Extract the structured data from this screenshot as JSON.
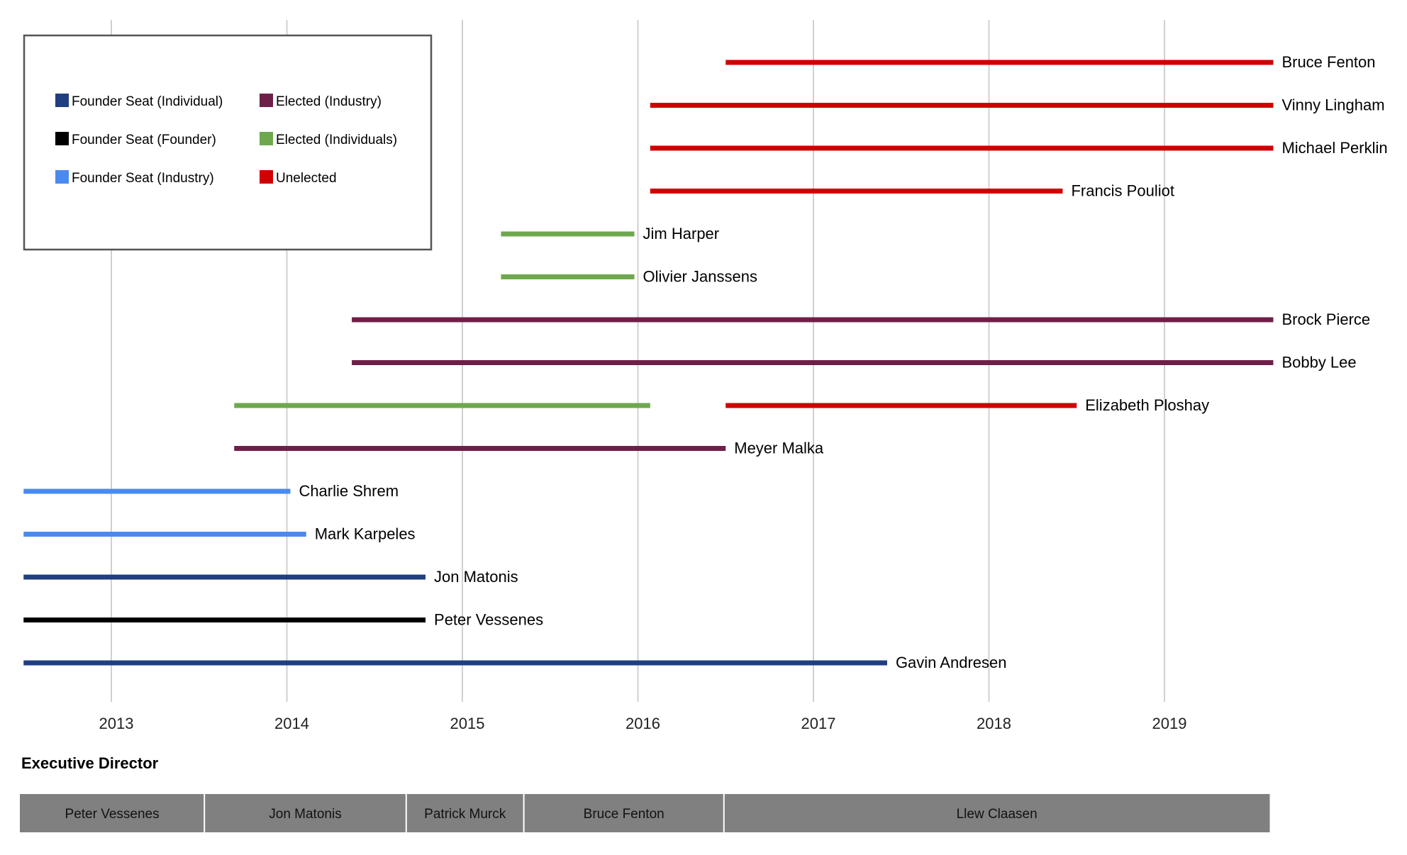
{
  "chart_data": {
    "type": "timeline",
    "title": "",
    "xlabel": "",
    "ylabel": "",
    "xlim": [
      2012.5,
      2019.75
    ],
    "grid": true,
    "x_ticks": [
      2013,
      2014,
      2015,
      2016,
      2017,
      2018,
      2019
    ],
    "categories_colors": {
      "Founder Seat (Individual)": "#1f3f7f",
      "Founder Seat (Founder)": "#000000",
      "Founder Seat (Industry)": "#4a8af0",
      "Elected (Industry)": "#6e1f48",
      "Elected (Individuals)": "#6ea84e",
      "Unelected": "#d00000"
    },
    "legend": [
      {
        "label": "Founder Seat (Individual)",
        "category": "Founder Seat (Individual)"
      },
      {
        "label": "Elected (Industry)",
        "category": "Elected (Industry)"
      },
      {
        "label": "Founder Seat (Founder)",
        "category": "Founder Seat (Founder)"
      },
      {
        "label": "Elected (Individuals)",
        "category": "Elected (Individuals)"
      },
      {
        "label": "Founder Seat (Industry)",
        "category": "Founder Seat (Industry)"
      },
      {
        "label": "Unelected",
        "category": "Unelected"
      }
    ],
    "rows": [
      {
        "name": "Bruce Fenton",
        "segments": [
          {
            "start": 2016.5,
            "end": 2019.62,
            "category": "Unelected"
          }
        ]
      },
      {
        "name": "Vinny Lingham",
        "segments": [
          {
            "start": 2016.07,
            "end": 2019.62,
            "category": "Unelected"
          }
        ]
      },
      {
        "name": "Michael Perklin",
        "segments": [
          {
            "start": 2016.07,
            "end": 2019.62,
            "category": "Unelected"
          }
        ]
      },
      {
        "name": "Francis Pouliot",
        "segments": [
          {
            "start": 2016.07,
            "end": 2018.42,
            "category": "Unelected"
          }
        ]
      },
      {
        "name": "Jim Harper",
        "segments": [
          {
            "start": 2015.22,
            "end": 2015.98,
            "category": "Elected (Individuals)"
          }
        ]
      },
      {
        "name": "Olivier Janssens",
        "segments": [
          {
            "start": 2015.22,
            "end": 2015.98,
            "category": "Elected (Individuals)"
          }
        ]
      },
      {
        "name": "Brock Pierce",
        "segments": [
          {
            "start": 2014.37,
            "end": 2019.62,
            "category": "Elected (Industry)"
          }
        ]
      },
      {
        "name": "Bobby Lee",
        "segments": [
          {
            "start": 2014.37,
            "end": 2019.62,
            "category": "Elected (Industry)"
          }
        ]
      },
      {
        "name": "Elizabeth Ploshay",
        "segments": [
          {
            "start": 2013.7,
            "end": 2016.07,
            "category": "Elected (Individuals)"
          },
          {
            "start": 2016.5,
            "end": 2018.5,
            "category": "Unelected"
          }
        ]
      },
      {
        "name": "Meyer Malka",
        "segments": [
          {
            "start": 2013.7,
            "end": 2016.5,
            "category": "Elected (Industry)"
          }
        ]
      },
      {
        "name": "Charlie Shrem",
        "segments": [
          {
            "start": 2012.5,
            "end": 2014.02,
            "category": "Founder Seat (Industry)"
          }
        ]
      },
      {
        "name": "Mark Karpeles",
        "segments": [
          {
            "start": 2012.5,
            "end": 2014.11,
            "category": "Founder Seat (Industry)"
          }
        ]
      },
      {
        "name": "Jon Matonis",
        "segments": [
          {
            "start": 2012.5,
            "end": 2014.79,
            "category": "Founder Seat (Individual)"
          }
        ]
      },
      {
        "name": "Peter Vessenes",
        "segments": [
          {
            "start": 2012.5,
            "end": 2014.79,
            "category": "Founder Seat (Founder)"
          }
        ]
      },
      {
        "name": "Gavin Andresen",
        "segments": [
          {
            "start": 2012.5,
            "end": 2017.42,
            "category": "Founder Seat (Individual)"
          }
        ]
      }
    ],
    "executive_director": {
      "title": "Executive Director",
      "terms": [
        {
          "name": "Peter Vessenes",
          "start": 2012.5,
          "end": 2013.53
        },
        {
          "name": "Jon Matonis",
          "start": 2013.53,
          "end": 2014.68
        },
        {
          "name": "Patrick Murck",
          "start": 2014.68,
          "end": 2015.35
        },
        {
          "name": "Bruce Fenton",
          "start": 2015.35,
          "end": 2016.49
        },
        {
          "name": "Llew Claasen",
          "start": 2016.49,
          "end": 2019.6
        }
      ]
    }
  }
}
